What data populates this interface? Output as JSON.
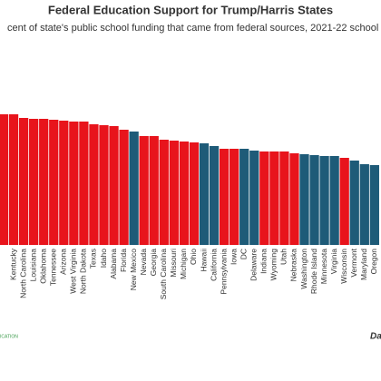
{
  "chart_data": {
    "type": "bar",
    "title": "Federal Education Support for Trump/Harris States",
    "subtitle": "cent of state's public school funding that came from federal sources, 2021-22 school",
    "categories": [
      null,
      "Kentucky",
      "North Carolina",
      "Louisiana",
      "Oklahoma",
      "Tennessee",
      "Arizona",
      "West Virginia",
      "North Dakota",
      "Texas",
      "Idaho",
      "Alabama",
      "Florida",
      "New Mexico",
      "Nevada",
      "Georgia",
      "South Carolina",
      "Missouri",
      "Michigan",
      "Ohio",
      "Hawaii",
      "California",
      "Pennsylvania",
      "Iowa",
      "DC",
      "Delaware",
      "Indiana",
      "Wyoming",
      "Utah",
      "Nebraska",
      "Washington",
      "Rhode Island",
      "Minnesota",
      "Virginia",
      "Wisconsin",
      "Vermont",
      "Maryland",
      "Oregon"
    ],
    "values": [
      14.4,
      14.4,
      14.0,
      13.9,
      13.9,
      13.8,
      13.7,
      13.6,
      13.6,
      13.3,
      13.2,
      13.1,
      12.7,
      12.5,
      12.0,
      12.0,
      11.6,
      11.5,
      11.4,
      11.3,
      11.2,
      10.9,
      10.6,
      10.6,
      10.6,
      10.4,
      10.3,
      10.3,
      10.3,
      10.1,
      10.0,
      9.9,
      9.8,
      9.8,
      9.6,
      9.3,
      8.9,
      8.8
    ],
    "colors": [
      "#e8141c",
      "#e8141c",
      "#e8141c",
      "#e8141c",
      "#e8141c",
      "#e8141c",
      "#e8141c",
      "#e8141c",
      "#e8141c",
      "#e8141c",
      "#e8141c",
      "#e8141c",
      "#e8141c",
      "#1e5b78",
      "#e8141c",
      "#e8141c",
      "#e8141c",
      "#e8141c",
      "#e8141c",
      "#e8141c",
      "#1e5b78",
      "#1e5b78",
      "#e8141c",
      "#e8141c",
      "#1e5b78",
      "#1e5b78",
      "#e8141c",
      "#e8141c",
      "#e8141c",
      "#e8141c",
      "#1e5b78",
      "#1e5b78",
      "#1e5b78",
      "#1e5b78",
      "#e8141c",
      "#1e5b78",
      "#1e5b78",
      "#1e5b78"
    ],
    "ylim": [
      0,
      15
    ],
    "source": "Da",
    "logo": "ICATION"
  }
}
